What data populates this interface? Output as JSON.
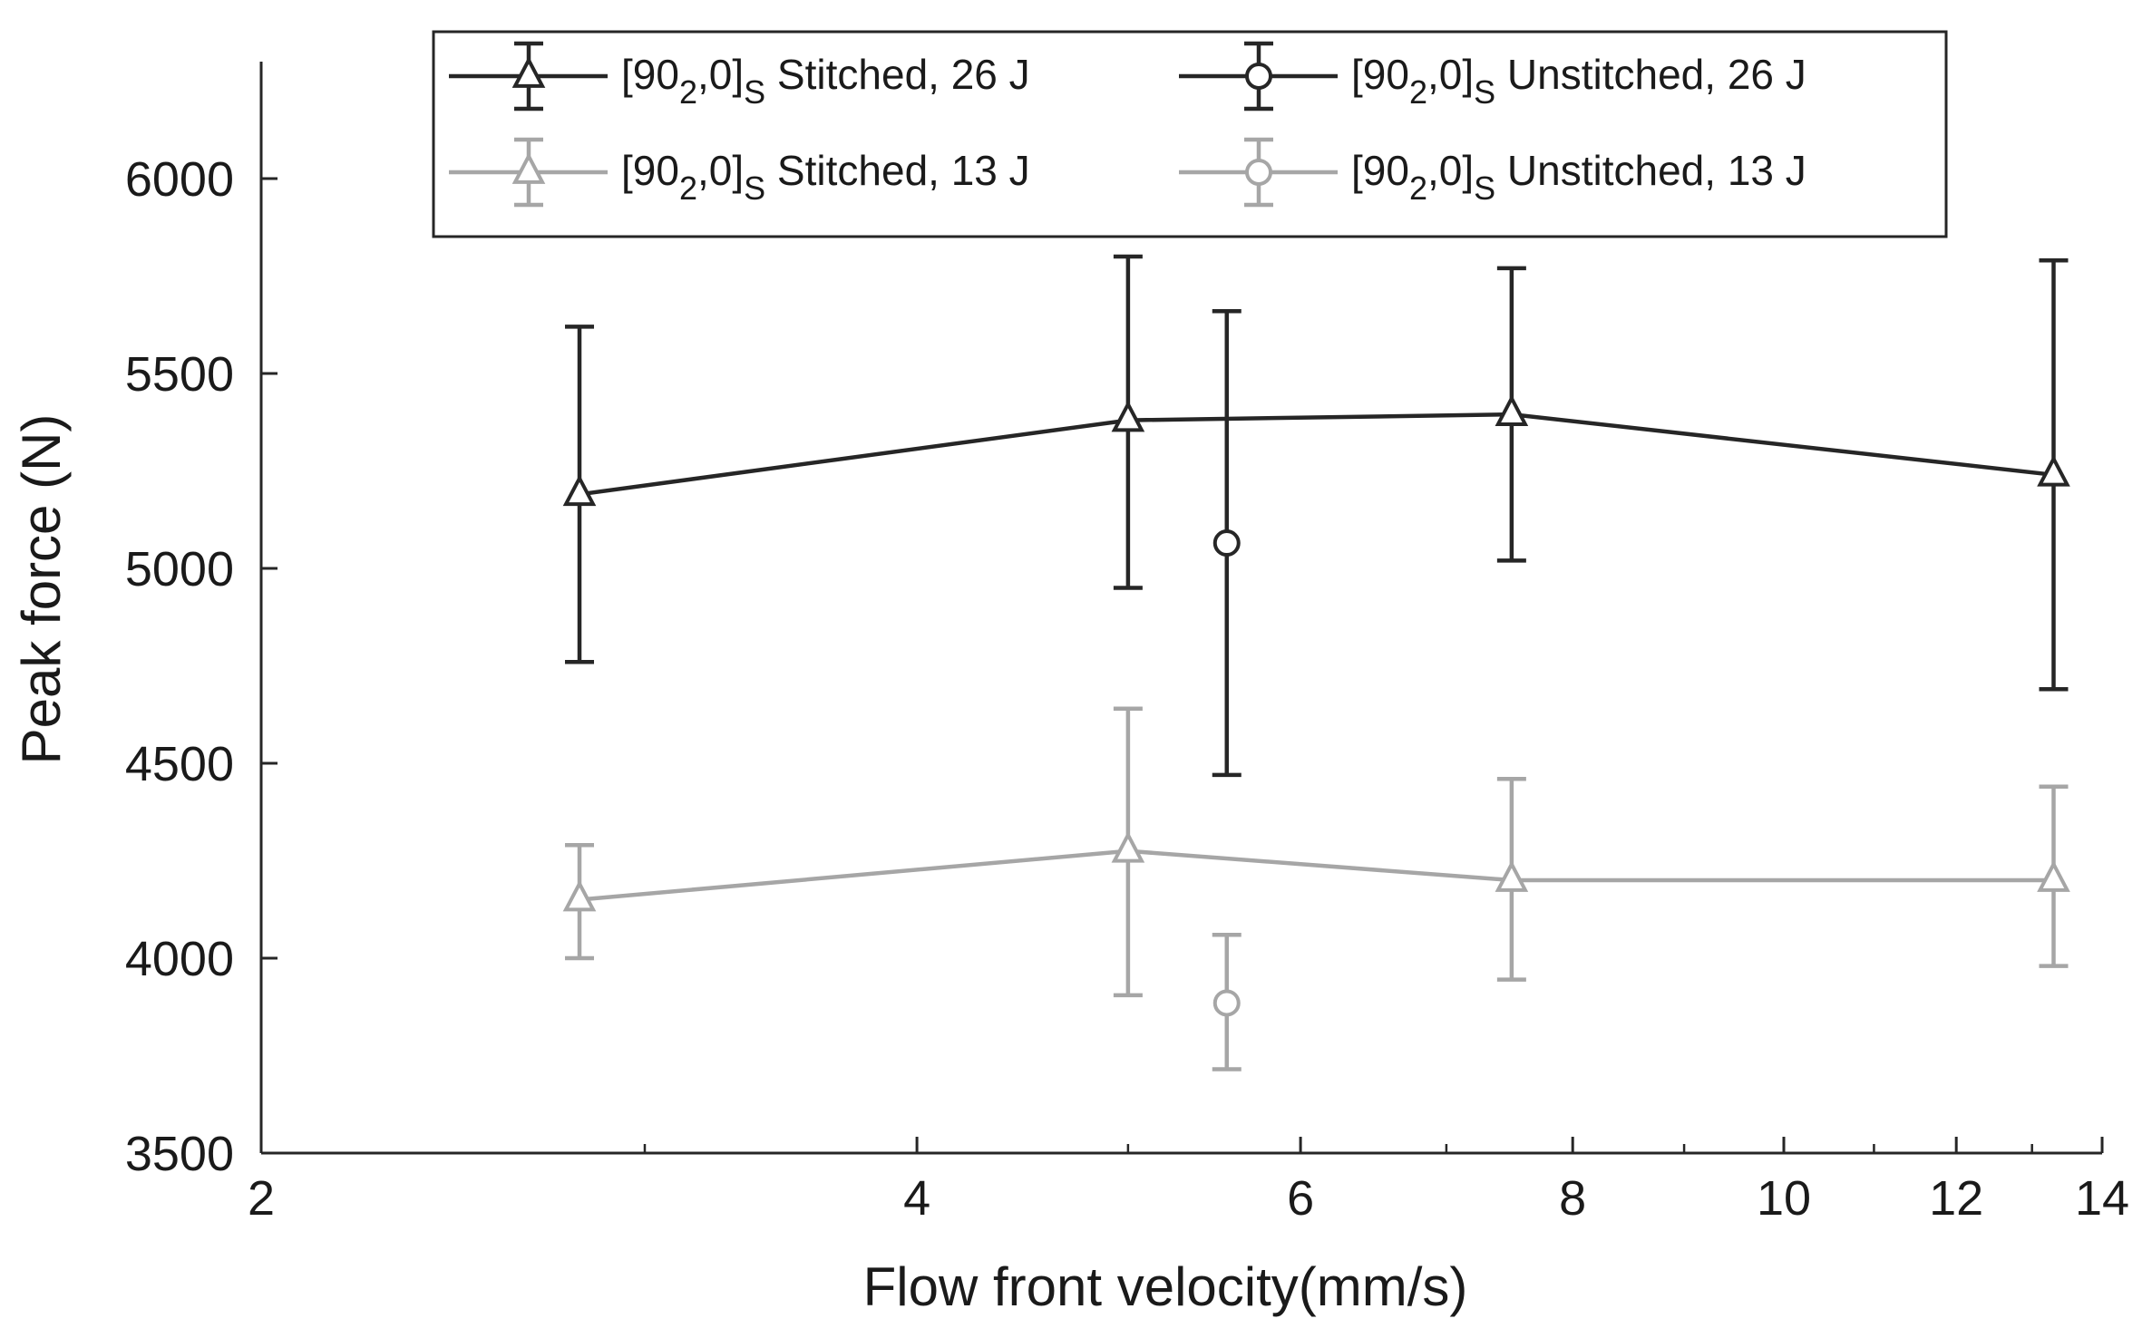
{
  "chart_data": {
    "type": "line",
    "xlabel": "Flow front velocity(mm/s)",
    "ylabel": "Peak force (N)",
    "xscale": "log",
    "xlim": [
      2,
      14
    ],
    "ylim": [
      3500,
      6300
    ],
    "xticks": [
      2,
      4,
      6,
      8,
      10,
      12,
      14
    ],
    "yticks": [
      3500,
      4000,
      4500,
      5000,
      5500,
      6000
    ],
    "grid": false,
    "legend_position": "top",
    "series": [
      {
        "name": "[90₂,0]ₛ Stitched, 26 J",
        "legend_parts": {
          "base": "[90",
          "sub1": "2",
          "mid": ",0]",
          "sub2": "S",
          "tail": " Stitched, 26 J"
        },
        "marker": "triangle",
        "color": "#262626",
        "connected": true,
        "points": [
          {
            "x": 2.8,
            "y": 5190,
            "low": 4760,
            "high": 5620
          },
          {
            "x": 5.0,
            "y": 5380,
            "low": 4950,
            "high": 5800
          },
          {
            "x": 7.5,
            "y": 5395,
            "low": 5020,
            "high": 5770
          },
          {
            "x": 13.3,
            "y": 5240,
            "low": 4690,
            "high": 5790
          }
        ]
      },
      {
        "name": "[90₂,0]ₛ Unstitched, 26 J",
        "legend_parts": {
          "base": "[90",
          "sub1": "2",
          "mid": ",0]",
          "sub2": "S",
          "tail": " Unstitched, 26 J"
        },
        "marker": "circle",
        "color": "#262626",
        "connected": false,
        "points": [
          {
            "x": 5.55,
            "y": 5065,
            "low": 4470,
            "high": 5660
          }
        ]
      },
      {
        "name": "[90₂,0]ₛ Stitched, 13 J",
        "legend_parts": {
          "base": "[90",
          "sub1": "2",
          "mid": ",0]",
          "sub2": "S",
          "tail": " Stitched, 13 J"
        },
        "marker": "triangle",
        "color": "#a6a6a6",
        "connected": true,
        "points": [
          {
            "x": 2.8,
            "y": 4150,
            "low": 4000,
            "high": 4290
          },
          {
            "x": 5.0,
            "y": 4275,
            "low": 3905,
            "high": 4640
          },
          {
            "x": 7.5,
            "y": 4200,
            "low": 3945,
            "high": 4460
          },
          {
            "x": 13.3,
            "y": 4200,
            "low": 3980,
            "high": 4440
          }
        ]
      },
      {
        "name": "[90₂,0]ₛ Unstitched, 13 J",
        "legend_parts": {
          "base": "[90",
          "sub1": "2",
          "mid": ",0]",
          "sub2": "S",
          "tail": " Unstitched, 13 J"
        },
        "marker": "circle",
        "color": "#a6a6a6",
        "connected": false,
        "points": [
          {
            "x": 5.55,
            "y": 3885,
            "low": 3715,
            "high": 4060
          }
        ]
      }
    ]
  }
}
